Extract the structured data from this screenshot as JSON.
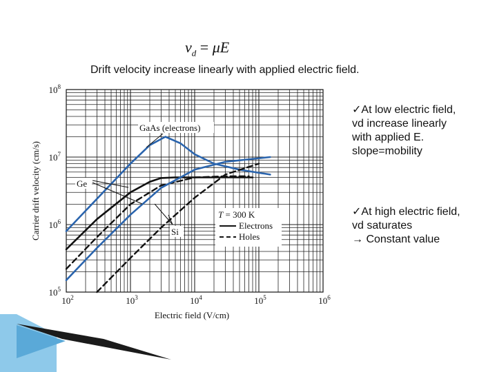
{
  "slide": {
    "formula": "v_d = μE",
    "formula_parts": {
      "v": "v",
      "d": "d",
      "eq": "=",
      "mu": "μ",
      "E": "E"
    },
    "headline": "Drift velocity increase linearly with applied electric field.",
    "notes": [
      {
        "lines": [
          "✓At low electric field,",
          "vd increase linearly",
          "with applied E.",
          "slope=mobility"
        ]
      },
      {
        "lines": [
          "✓At high electric field,",
          "vd saturates",
          "→ Constant value"
        ]
      }
    ]
  },
  "chart_data": {
    "type": "line",
    "xscale": "log",
    "yscale": "log",
    "xlim": [
      100,
      1000000
    ],
    "ylim": [
      100000,
      100000000
    ],
    "xlabel": "Electric field (V/cm)",
    "ylabel": "Carrier drift velocity (cm/s)",
    "xticks": [
      {
        "base": "10",
        "exp": "2"
      },
      {
        "base": "10",
        "exp": "3"
      },
      {
        "base": "10",
        "exp": "4"
      },
      {
        "base": "10",
        "exp": "5"
      },
      {
        "base": "10",
        "exp": "6"
      }
    ],
    "yticks": [
      {
        "base": "10",
        "exp": "5"
      },
      {
        "base": "10",
        "exp": "6"
      },
      {
        "base": "10",
        "exp": "7"
      },
      {
        "base": "10",
        "exp": "8"
      }
    ],
    "grid": true,
    "annotations": [
      {
        "text": "GaAs (electrons)"
      },
      {
        "text": "Ge"
      },
      {
        "text": "Si"
      }
    ],
    "legend": {
      "title": "T = 300 K",
      "title_parts": {
        "T": "T",
        "rest": " = 300 K"
      },
      "entries": [
        {
          "label": "Electrons",
          "style": "solid"
        },
        {
          "label": "Holes",
          "style": "dashed"
        }
      ]
    },
    "series": [
      {
        "material": "GaAs",
        "carrier": "electrons",
        "color": "#2a64ad",
        "dash": "solid",
        "x": [
          100,
          300,
          1000,
          2000,
          3500,
          6000,
          10000,
          20000,
          50000,
          150000
        ],
        "y": [
          800000,
          2400000,
          8000000,
          15000000,
          20000000,
          16000000,
          11000000,
          8000000,
          6500000,
          5500000
        ]
      },
      {
        "material": "Ge",
        "carrier": "electrons",
        "color": "#111111",
        "dash": "solid",
        "x": [
          100,
          300,
          1000,
          2000,
          3000,
          5000,
          10000,
          30000,
          80000
        ],
        "y": [
          430000,
          1200000,
          3000000,
          4300000,
          4900000,
          5000000,
          5000000,
          5000000,
          5000000
        ]
      },
      {
        "material": "Ge",
        "carrier": "holes",
        "color": "#111111",
        "dash": "dashed",
        "x": [
          100,
          300,
          1000,
          3000,
          10000,
          30000,
          70000
        ],
        "y": [
          220000,
          650000,
          2000000,
          3800000,
          5000000,
          5200000,
          5200000
        ]
      },
      {
        "material": "Si",
        "carrier": "electrons",
        "color": "#2a64ad",
        "dash": "solid",
        "x": [
          100,
          300,
          1000,
          3000,
          10000,
          30000,
          150000
        ],
        "y": [
          150000,
          450000,
          1400000,
          3500000,
          6500000,
          8500000,
          10000000
        ]
      },
      {
        "material": "Si",
        "carrier": "holes",
        "color": "#111111",
        "dash": "dashed",
        "x": [
          300,
          1000,
          3000,
          10000,
          30000,
          100000
        ],
        "y": [
          100000,
          320000,
          900000,
          2500000,
          5500000,
          8000000
        ]
      }
    ]
  }
}
